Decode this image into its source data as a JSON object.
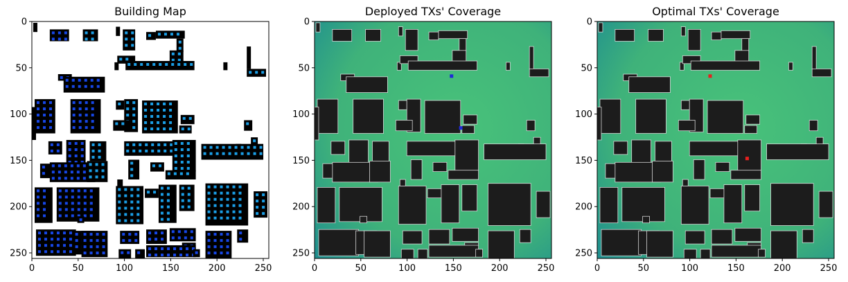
{
  "figure": {
    "panels": [
      {
        "title": "Building Map",
        "mode": "map"
      },
      {
        "title": "Deployed TXs' Coverage",
        "mode": "coverage"
      },
      {
        "title": "Optimal TXs' Coverage",
        "mode": "coverage"
      }
    ]
  },
  "chart_data": [
    {
      "type": "heatmap",
      "title": "Building Map",
      "xlabel": "",
      "ylabel": "",
      "xlim": [
        0,
        256
      ],
      "ylim": [
        256,
        0
      ],
      "xticks": [
        0,
        50,
        100,
        150,
        200,
        250
      ],
      "yticks": [
        0,
        50,
        100,
        150,
        200,
        250
      ],
      "grid": false,
      "colors": {
        "background": "#ffffff",
        "building": "#000000",
        "tx_candidate": "#1a9ee6",
        "tx_deep": "#1646e6"
      }
    },
    {
      "type": "heatmap",
      "title": "Deployed TXs' Coverage",
      "xlabel": "",
      "ylabel": "",
      "xlim": [
        0,
        256
      ],
      "ylim": [
        256,
        0
      ],
      "xticks": [
        0,
        50,
        100,
        150,
        200,
        250
      ],
      "yticks": [
        0,
        50,
        100,
        150,
        200,
        250
      ],
      "grid": false,
      "transmitters": [
        {
          "x": 148,
          "y": 59,
          "color": "#1f2ad8"
        },
        {
          "x": 158,
          "y": 115,
          "color": "#1f2ad8"
        }
      ],
      "colors": {
        "coverage_high": "#48c27a",
        "coverage_low": "#1f8f8f",
        "building": "#1c1c1c",
        "edge": "#d8d8d8"
      }
    },
    {
      "type": "heatmap",
      "title": "Optimal TXs' Coverage",
      "xlabel": "",
      "ylabel": "",
      "xlim": [
        0,
        256
      ],
      "ylim": [
        256,
        0
      ],
      "xticks": [
        0,
        50,
        100,
        150,
        200,
        250
      ],
      "yticks": [
        0,
        50,
        100,
        150,
        200,
        250
      ],
      "grid": false,
      "transmitters": [
        {
          "x": 122,
          "y": 59,
          "color": "#e8201e"
        },
        {
          "x": 162,
          "y": 148,
          "color": "#e8201e"
        }
      ],
      "colors": {
        "coverage_high": "#48c27a",
        "coverage_low": "#1f8f8f",
        "building": "#1c1c1c",
        "edge": "#d8d8d8"
      }
    }
  ]
}
